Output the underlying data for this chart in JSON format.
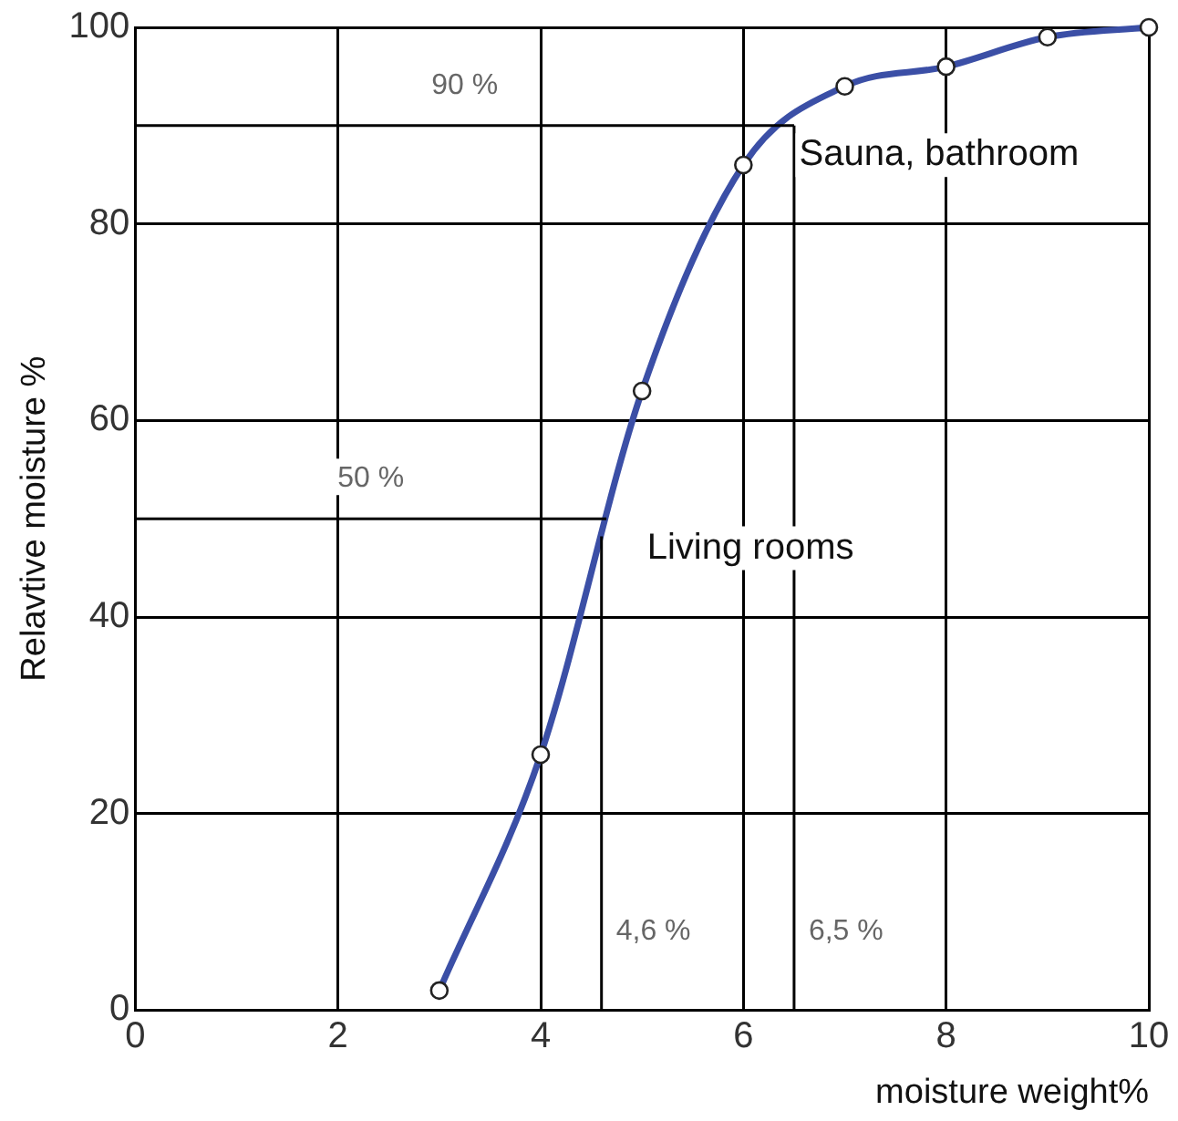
{
  "chart_data": {
    "type": "line",
    "xlabel": "moisture weight%",
    "ylabel": "Relavtive moisture %",
    "x": [
      3,
      4,
      5,
      6,
      7,
      8,
      9,
      10
    ],
    "series": [
      {
        "color": "#3b4fa6",
        "values": [
          2,
          26,
          63,
          86,
          94,
          96,
          99,
          100
        ]
      }
    ],
    "xlim": [
      0,
      10
    ],
    "xticks": [
      0,
      2,
      4,
      6,
      8,
      10
    ],
    "ylim": [
      0,
      100
    ],
    "yticks": [
      0,
      20,
      40,
      60,
      80,
      100
    ],
    "grid": true,
    "legend": false,
    "marker": "circle",
    "line_style": "solid",
    "ref_lines": [
      {
        "axis": "y",
        "value": 90,
        "label": "90 %"
      },
      {
        "axis": "y",
        "value": 50,
        "label": "50 %"
      },
      {
        "axis": "x",
        "value": 4.6,
        "label": "4,6 %"
      },
      {
        "axis": "x",
        "value": 6.5,
        "label": "6,5 %"
      }
    ],
    "annotations": [
      "Living rooms",
      "Sauna, bathroom"
    ]
  }
}
